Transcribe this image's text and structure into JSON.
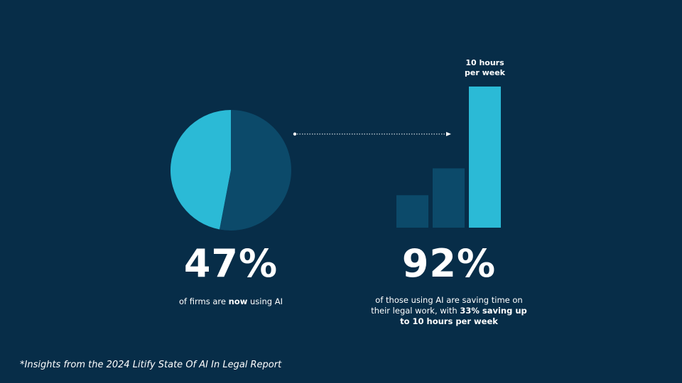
{
  "chart_data": [
    {
      "type": "pie",
      "values": [
        47,
        53
      ],
      "colors": [
        "#2bbad6",
        "#0c4a6a"
      ]
    },
    {
      "type": "bar",
      "values": [
        2.3,
        4.2,
        10
      ],
      "colors": [
        "#0c4a6a",
        "#0c4a6a",
        "#2bbad6"
      ],
      "annotation": [
        "10 hours",
        "per week"
      ]
    }
  ],
  "stats": [
    {
      "figure": "47%",
      "caption": [
        {
          "text": "of firms are "
        },
        {
          "text": "now",
          "bold": true
        },
        {
          "text": " using AI"
        }
      ]
    },
    {
      "figure": "92%",
      "caption": [
        {
          "text": "of those using AI are saving time on their legal work, with "
        },
        {
          "text": "33% saving up to 10 hours per week",
          "bold": true
        }
      ]
    }
  ],
  "footnote": "*Insights from the 2024 Litify State Of AI In Legal Report"
}
